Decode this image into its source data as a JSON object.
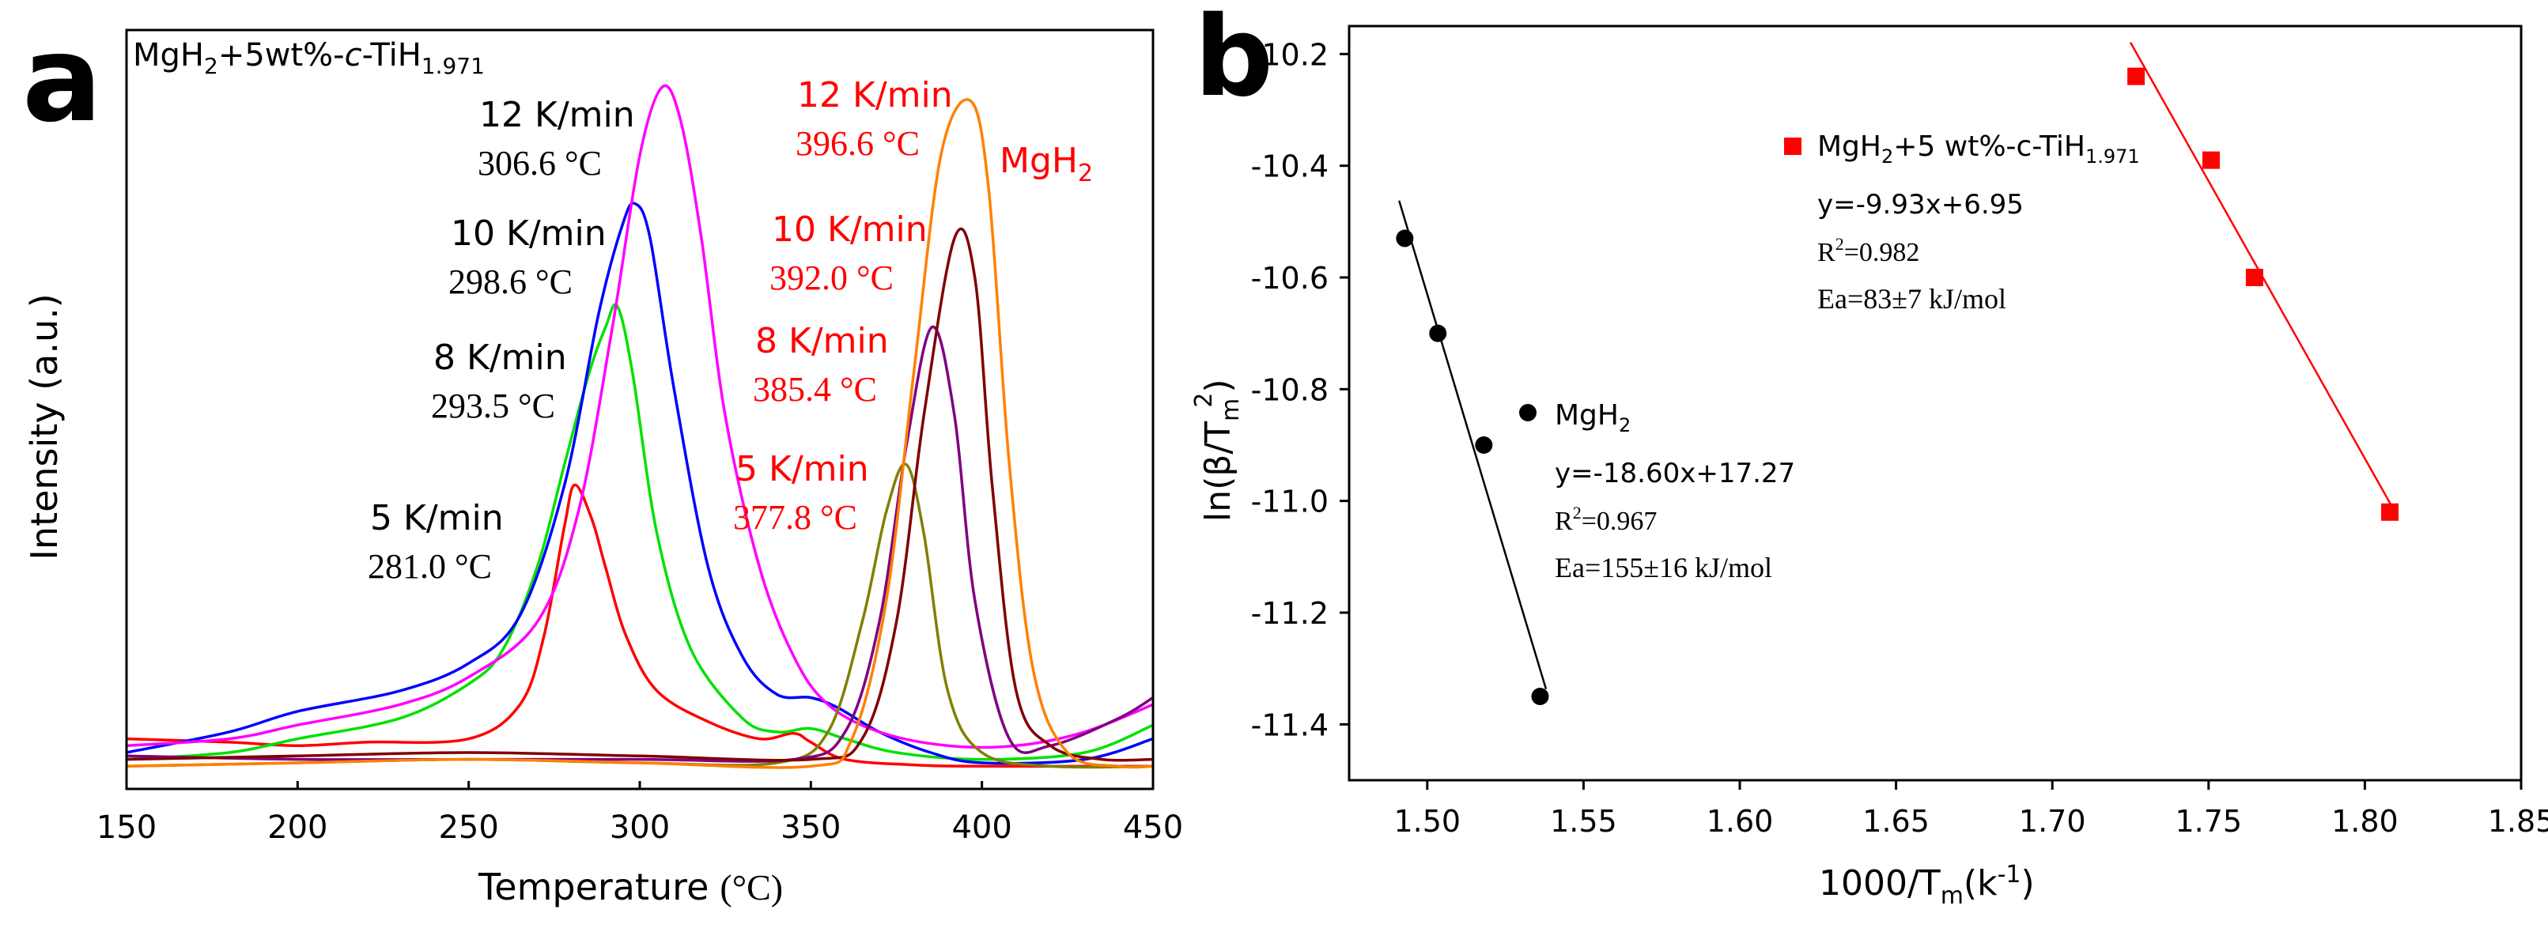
{
  "panel_a": {
    "letter": "a",
    "title_parts": [
      "MgH",
      "2",
      "+5wt%-",
      "c",
      "-TiH",
      "1.971"
    ],
    "xlabel": "Temperature",
    "xunit": "(°C)",
    "ylabel": "Intensity  (a.u.)",
    "mgh2_label": [
      "MgH",
      "2"
    ],
    "colors": {
      "composite_black": "#000000",
      "mgh2_red": "#ff0000"
    }
  },
  "panel_b": {
    "letter": "b",
    "ylabel_parts": [
      "ln(β/T",
      "m",
      "2",
      ")"
    ],
    "xlabel_parts": [
      "1000/T",
      "m",
      "(k",
      "-1",
      ")"
    ],
    "legend": {
      "composite": {
        "name_parts": [
          "MgH",
          "2",
          "+5 wt%-c-TiH",
          "1.971"
        ],
        "eq": "y=-9.93x+6.95",
        "r2_parts": [
          "R",
          "2",
          "=0.982"
        ],
        "ea": "Ea=83±7 kJ/mol"
      },
      "mgh2": {
        "name_parts": [
          "MgH",
          "2"
        ],
        "eq": "y=-18.60x+17.27",
        "r2_parts": [
          "R",
          "2",
          "=0.967"
        ],
        "ea": "Ea=155±16 kJ/mol"
      }
    }
  },
  "chart_data": [
    {
      "type": "line",
      "title": "MgH2+5wt%-c-TiH1.971",
      "xlabel": "Temperature (°C)",
      "ylabel": "Intensity (a.u.)",
      "xlim": [
        150,
        450
      ],
      "ylim": [
        0,
        1
      ],
      "xticks": [
        150,
        200,
        250,
        300,
        350,
        400,
        450
      ],
      "yticks": [],
      "series": [
        {
          "name": "c-TiH 5 K/min",
          "color": "#ff0000",
          "peak_x": 281.0,
          "peak_y": 0.42,
          "x": [
            150,
            180,
            200,
            220,
            250,
            265,
            272,
            278,
            281,
            286,
            290,
            296,
            305,
            320,
            335,
            345,
            350,
            360,
            380,
            400,
            450
          ],
          "y": [
            0.05,
            0.045,
            0.04,
            0.045,
            0.05,
            0.1,
            0.2,
            0.36,
            0.42,
            0.37,
            0.3,
            0.2,
            0.12,
            0.075,
            0.05,
            0.058,
            0.045,
            0.02,
            0.012,
            0.01,
            0.01
          ]
        },
        {
          "name": "c-TiH 8 K/min",
          "color": "#00e100",
          "peak_x": 293.5,
          "peak_y": 0.68,
          "x": [
            150,
            180,
            200,
            230,
            250,
            260,
            270,
            278,
            285,
            290,
            293.5,
            298,
            305,
            315,
            330,
            340,
            350,
            360,
            375,
            400,
            430,
            450
          ],
          "y": [
            0.02,
            0.03,
            0.05,
            0.08,
            0.13,
            0.18,
            0.3,
            0.45,
            0.58,
            0.65,
            0.68,
            0.58,
            0.35,
            0.18,
            0.08,
            0.06,
            0.065,
            0.05,
            0.03,
            0.02,
            0.03,
            0.07
          ]
        },
        {
          "name": "c-TiH 10 K/min",
          "color": "#0000ff",
          "peak_x": 298.6,
          "peak_y": 0.83,
          "x": [
            150,
            180,
            200,
            230,
            250,
            265,
            278,
            288,
            295,
            298.6,
            303,
            310,
            320,
            330,
            340,
            350,
            358,
            370,
            385,
            400,
            430,
            450
          ],
          "y": [
            0.03,
            0.06,
            0.09,
            0.12,
            0.16,
            0.23,
            0.42,
            0.67,
            0.8,
            0.83,
            0.78,
            0.56,
            0.3,
            0.17,
            0.115,
            0.11,
            0.095,
            0.06,
            0.03,
            0.015,
            0.02,
            0.05
          ]
        },
        {
          "name": "c-TiH 12 K/min",
          "color": "#ff00ff",
          "peak_x": 306.6,
          "peak_y": 1.0,
          "x": [
            150,
            180,
            200,
            230,
            250,
            270,
            282,
            292,
            300,
            306.6,
            312,
            318,
            325,
            335,
            345,
            355,
            370,
            390,
            410,
            430,
            450
          ],
          "y": [
            0.04,
            0.05,
            0.07,
            0.1,
            0.14,
            0.22,
            0.38,
            0.65,
            0.9,
            1.0,
            0.95,
            0.78,
            0.52,
            0.3,
            0.17,
            0.1,
            0.06,
            0.04,
            0.04,
            0.06,
            0.1
          ]
        },
        {
          "name": "MgH2 5 K/min",
          "color": "#808000",
          "peak_x": 377.8,
          "peak_y": 0.45,
          "x": [
            150,
            200,
            250,
            300,
            340,
            355,
            365,
            372,
            377.8,
            383,
            390,
            400,
            420,
            450
          ],
          "y": [
            0.01,
            0.015,
            0.02,
            0.015,
            0.015,
            0.06,
            0.22,
            0.38,
            0.45,
            0.35,
            0.12,
            0.03,
            0.01,
            0.01
          ]
        },
        {
          "name": "MgH2 8 K/min",
          "color": "#800080",
          "peak_x": 385.4,
          "peak_y": 0.65,
          "x": [
            150,
            200,
            250,
            300,
            345,
            360,
            370,
            378,
            385.4,
            392,
            398,
            408,
            420,
            440,
            450
          ],
          "y": [
            0.025,
            0.02,
            0.02,
            0.02,
            0.02,
            0.06,
            0.22,
            0.48,
            0.65,
            0.52,
            0.25,
            0.05,
            0.04,
            0.08,
            0.11
          ]
        },
        {
          "name": "MgH2 10 K/min",
          "color": "#800000",
          "peak_x": 392.0,
          "peak_y": 0.78,
          "x": [
            150,
            200,
            250,
            300,
            350,
            365,
            375,
            383,
            392,
            398,
            403,
            410,
            420,
            435,
            450
          ],
          "y": [
            0.02,
            0.025,
            0.03,
            0.025,
            0.02,
            0.05,
            0.22,
            0.52,
            0.78,
            0.72,
            0.42,
            0.12,
            0.04,
            0.02,
            0.02
          ]
        },
        {
          "name": "MgH2 12 K/min",
          "color": "#ff8000",
          "peak_x": 396.6,
          "peak_y": 0.98,
          "x": [
            150,
            200,
            250,
            300,
            350,
            362,
            372,
            380,
            388,
            396.6,
            402,
            408,
            415,
            425,
            440,
            450
          ],
          "y": [
            0.01,
            0.015,
            0.02,
            0.015,
            0.01,
            0.05,
            0.25,
            0.58,
            0.9,
            0.98,
            0.85,
            0.45,
            0.15,
            0.03,
            0.01,
            0.01
          ]
        }
      ],
      "annotations": [
        {
          "rate": "12 K/min",
          "temp": "306.6 °C",
          "color": "#000000"
        },
        {
          "rate": "10 K/min",
          "temp": "298.6 °C",
          "color": "#000000"
        },
        {
          "rate": "8 K/min",
          "temp": "293.5 °C",
          "color": "#000000"
        },
        {
          "rate": "5 K/min",
          "temp": "281.0 °C",
          "color": "#000000"
        },
        {
          "rate": "12 K/min",
          "temp": "396.6 °C",
          "color": "#ff0000"
        },
        {
          "rate": "10 K/min",
          "temp": "392.0 °C",
          "color": "#ff0000"
        },
        {
          "rate": "8 K/min",
          "temp": "385.4 °C",
          "color": "#ff0000"
        },
        {
          "rate": "5 K/min",
          "temp": "377.8 °C",
          "color": "#ff0000"
        }
      ]
    },
    {
      "type": "scatter",
      "title": "",
      "xlabel": "1000/Tm(k-1)",
      "ylabel": "ln(β/Tm2)",
      "xlim": [
        1.475,
        1.85
      ],
      "ylim": [
        -11.5,
        -10.15
      ],
      "xticks": [
        1.5,
        1.55,
        1.6,
        1.65,
        1.7,
        1.75,
        1.8,
        1.85
      ],
      "yticks": [
        -11.4,
        -11.2,
        -11.0,
        -10.8,
        -10.6,
        -10.4,
        -10.2
      ],
      "series": [
        {
          "name": "MgH2",
          "color": "#000000",
          "marker": "circle",
          "x": [
            1.4928,
            1.5034,
            1.5181,
            1.5361
          ],
          "y": [
            -10.53,
            -10.7,
            -10.9,
            -11.35
          ],
          "fit": {
            "x": [
              1.491,
              1.538
            ],
            "slope": -18.6,
            "intercept": 17.27
          }
        },
        {
          "name": "MgH2+5 wt%-c-TiH1.971",
          "color": "#ff0000",
          "marker": "square",
          "x": [
            1.7268,
            1.7508,
            1.7647,
            1.808
          ],
          "y": [
            -10.24,
            -10.39,
            -10.6,
            -11.02
          ],
          "fit": {
            "x": [
              1.725,
              1.81
            ],
            "slope": -9.93,
            "intercept": 6.95
          }
        }
      ]
    }
  ]
}
